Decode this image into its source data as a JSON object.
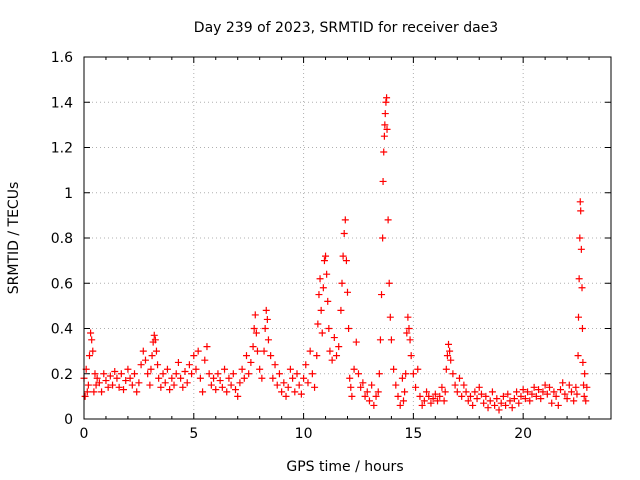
{
  "chart_data": {
    "type": "scatter",
    "title": "Day 239 of 2023, SRMTID for receiver dae3",
    "xlabel": "GPS time / hours",
    "ylabel": "SRMTID / TECUs",
    "xlim": [
      0,
      24
    ],
    "ylim": [
      0,
      1.6
    ],
    "xticks": [
      0,
      5,
      10,
      15,
      20
    ],
    "xtick_labels": [
      "0",
      "5",
      "10",
      "15",
      "20"
    ],
    "yticks": [
      0,
      0.2,
      0.4,
      0.6,
      0.8,
      1.0,
      1.2,
      1.4,
      1.6
    ],
    "ytick_labels": [
      "0",
      "0.2",
      "0.4",
      "0.6",
      "0.8",
      "1",
      "1.2",
      "1.4",
      "1.6"
    ],
    "grid": true,
    "marker": "+",
    "colors": {
      "series": "#ff0000",
      "grid": "#b0b0b0",
      "axes": "#000000"
    },
    "series": [
      {
        "name": "SRMTID",
        "x": [
          0.0,
          0.05,
          0.1,
          0.15,
          0.2,
          0.25,
          0.3,
          0.35,
          0.4,
          0.45,
          0.5,
          0.55,
          0.6,
          0.7,
          0.8,
          0.9,
          1.0,
          1.1,
          1.2,
          1.3,
          1.4,
          1.5,
          1.6,
          1.7,
          1.8,
          1.9,
          2.0,
          2.1,
          2.2,
          2.3,
          2.4,
          2.5,
          2.6,
          2.7,
          2.8,
          2.9,
          3.0,
          3.05,
          3.1,
          3.15,
          3.2,
          3.25,
          3.3,
          3.35,
          3.4,
          3.5,
          3.6,
          3.7,
          3.8,
          3.9,
          4.0,
          4.1,
          4.2,
          4.3,
          4.4,
          4.5,
          4.6,
          4.7,
          4.8,
          4.9,
          5.0,
          5.1,
          5.2,
          5.3,
          5.4,
          5.5,
          5.6,
          5.7,
          5.8,
          5.9,
          6.0,
          6.1,
          6.2,
          6.3,
          6.4,
          6.5,
          6.6,
          6.7,
          6.8,
          6.9,
          7.0,
          7.1,
          7.2,
          7.3,
          7.4,
          7.5,
          7.6,
          7.7,
          7.75,
          7.8,
          7.85,
          7.9,
          8.0,
          8.1,
          8.2,
          8.25,
          8.3,
          8.35,
          8.4,
          8.5,
          8.6,
          8.7,
          8.8,
          8.9,
          9.0,
          9.1,
          9.2,
          9.3,
          9.4,
          9.5,
          9.6,
          9.7,
          9.8,
          9.9,
          10.0,
          10.1,
          10.2,
          10.3,
          10.4,
          10.5,
          10.6,
          10.65,
          10.7,
          10.75,
          10.8,
          10.85,
          10.9,
          10.95,
          11.0,
          11.05,
          11.1,
          11.15,
          11.2,
          11.3,
          11.4,
          11.5,
          11.6,
          11.7,
          11.75,
          11.8,
          11.85,
          11.9,
          11.95,
          12.0,
          12.05,
          12.1,
          12.15,
          12.2,
          12.3,
          12.4,
          12.5,
          12.6,
          12.7,
          12.8,
          12.9,
          13.0,
          13.1,
          13.2,
          13.3,
          13.4,
          13.45,
          13.5,
          13.55,
          13.6,
          13.62,
          13.65,
          13.68,
          13.7,
          13.72,
          13.75,
          13.78,
          13.8,
          13.85,
          13.9,
          13.95,
          14.0,
          14.1,
          14.2,
          14.3,
          14.4,
          14.5,
          14.55,
          14.6,
          14.65,
          14.7,
          14.75,
          14.8,
          14.85,
          14.9,
          15.0,
          15.1,
          15.2,
          15.3,
          15.4,
          15.5,
          15.6,
          15.7,
          15.8,
          15.9,
          16.0,
          16.1,
          16.2,
          16.3,
          16.4,
          16.45,
          16.5,
          16.55,
          16.6,
          16.65,
          16.7,
          16.8,
          16.9,
          17.0,
          17.1,
          17.2,
          17.3,
          17.4,
          17.5,
          17.6,
          17.7,
          17.8,
          17.9,
          18.0,
          18.1,
          18.2,
          18.3,
          18.4,
          18.5,
          18.6,
          18.7,
          18.8,
          18.9,
          19.0,
          19.1,
          19.2,
          19.3,
          19.4,
          19.5,
          19.6,
          19.7,
          19.8,
          19.9,
          20.0,
          20.1,
          20.2,
          20.3,
          20.4,
          20.5,
          20.6,
          20.7,
          20.8,
          20.9,
          21.0,
          21.1,
          21.2,
          21.3,
          21.4,
          21.5,
          21.6,
          21.7,
          21.8,
          21.9,
          22.0,
          22.1,
          22.2,
          22.3,
          22.4,
          22.45,
          22.5,
          22.52,
          22.55,
          22.58,
          22.6,
          22.62,
          22.65,
          22.68,
          22.7,
          22.72,
          22.75,
          22.78,
          22.8,
          22.85,
          22.9
        ],
        "y": [
          0.18,
          0.1,
          0.22,
          0.12,
          0.15,
          0.28,
          0.38,
          0.35,
          0.3,
          0.12,
          0.2,
          0.15,
          0.18,
          0.16,
          0.12,
          0.2,
          0.17,
          0.14,
          0.19,
          0.15,
          0.21,
          0.18,
          0.14,
          0.2,
          0.13,
          0.17,
          0.22,
          0.18,
          0.15,
          0.2,
          0.12,
          0.16,
          0.24,
          0.3,
          0.26,
          0.2,
          0.15,
          0.22,
          0.28,
          0.34,
          0.37,
          0.35,
          0.3,
          0.24,
          0.18,
          0.14,
          0.2,
          0.16,
          0.22,
          0.13,
          0.18,
          0.15,
          0.2,
          0.25,
          0.18,
          0.14,
          0.21,
          0.16,
          0.24,
          0.2,
          0.28,
          0.22,
          0.3,
          0.18,
          0.12,
          0.26,
          0.32,
          0.2,
          0.15,
          0.18,
          0.13,
          0.2,
          0.17,
          0.14,
          0.22,
          0.12,
          0.18,
          0.15,
          0.2,
          0.13,
          0.1,
          0.16,
          0.22,
          0.18,
          0.28,
          0.2,
          0.25,
          0.32,
          0.4,
          0.46,
          0.38,
          0.3,
          0.22,
          0.18,
          0.3,
          0.4,
          0.48,
          0.44,
          0.35,
          0.28,
          0.18,
          0.24,
          0.15,
          0.2,
          0.12,
          0.16,
          0.1,
          0.14,
          0.22,
          0.18,
          0.12,
          0.2,
          0.15,
          0.11,
          0.18,
          0.24,
          0.16,
          0.3,
          0.2,
          0.14,
          0.28,
          0.42,
          0.55,
          0.62,
          0.48,
          0.38,
          0.58,
          0.7,
          0.72,
          0.64,
          0.52,
          0.4,
          0.3,
          0.26,
          0.36,
          0.28,
          0.32,
          0.48,
          0.6,
          0.72,
          0.82,
          0.88,
          0.7,
          0.56,
          0.4,
          0.18,
          0.14,
          0.1,
          0.22,
          0.34,
          0.2,
          0.14,
          0.16,
          0.1,
          0.12,
          0.08,
          0.15,
          0.06,
          0.1,
          0.12,
          0.2,
          0.35,
          0.55,
          0.8,
          1.05,
          1.18,
          1.25,
          1.3,
          1.35,
          1.4,
          1.42,
          1.28,
          0.88,
          0.6,
          0.45,
          0.35,
          0.22,
          0.15,
          0.1,
          0.06,
          0.18,
          0.08,
          0.12,
          0.2,
          0.38,
          0.45,
          0.4,
          0.35,
          0.28,
          0.2,
          0.14,
          0.22,
          0.1,
          0.06,
          0.08,
          0.12,
          0.1,
          0.07,
          0.09,
          0.11,
          0.08,
          0.1,
          0.14,
          0.08,
          0.12,
          0.22,
          0.28,
          0.33,
          0.3,
          0.26,
          0.2,
          0.15,
          0.12,
          0.18,
          0.1,
          0.15,
          0.12,
          0.08,
          0.1,
          0.06,
          0.12,
          0.09,
          0.14,
          0.11,
          0.07,
          0.1,
          0.05,
          0.08,
          0.12,
          0.06,
          0.09,
          0.04,
          0.07,
          0.1,
          0.06,
          0.11,
          0.08,
          0.05,
          0.09,
          0.12,
          0.07,
          0.1,
          0.13,
          0.09,
          0.12,
          0.08,
          0.11,
          0.14,
          0.1,
          0.13,
          0.09,
          0.12,
          0.15,
          0.11,
          0.14,
          0.07,
          0.12,
          0.1,
          0.06,
          0.13,
          0.16,
          0.11,
          0.09,
          0.15,
          0.12,
          0.08,
          0.14,
          0.11,
          0.28,
          0.45,
          0.62,
          0.8,
          0.96,
          0.92,
          0.75,
          0.58,
          0.4,
          0.25,
          0.15,
          0.1,
          0.2,
          0.08,
          0.14
        ]
      }
    ]
  }
}
